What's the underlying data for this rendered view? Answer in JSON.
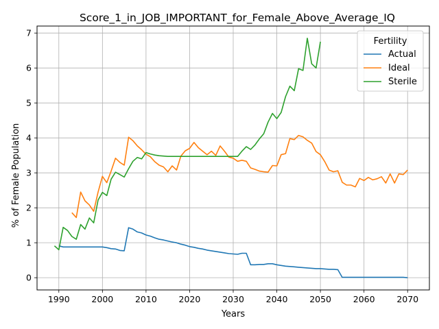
{
  "chart_data": {
    "type": "line",
    "title": "Score_1_in_JOB_IMPORTANT_for_Female_Above_Average_IQ",
    "xlabel": "Years",
    "ylabel": "% of Female Population",
    "xlim": [
      1985,
      2075
    ],
    "ylim": [
      -0.35,
      7.2
    ],
    "xticks": [
      1990,
      2000,
      2010,
      2020,
      2030,
      2040,
      2050,
      2060,
      2070
    ],
    "yticks": [
      0,
      1,
      2,
      3,
      4,
      5,
      6,
      7
    ],
    "grid": true,
    "legend": {
      "title": "Fertility",
      "position": "top-right"
    },
    "series": [
      {
        "name": "Actual",
        "color": "#1f77b4",
        "x": [
          1990,
          1991,
          1992,
          1993,
          1994,
          1995,
          1996,
          1997,
          1998,
          1999,
          2000,
          2001,
          2002,
          2003,
          2004,
          2005,
          2006,
          2007,
          2008,
          2009,
          2010,
          2011,
          2012,
          2013,
          2014,
          2015,
          2016,
          2017,
          2018,
          2019,
          2020,
          2021,
          2022,
          2023,
          2024,
          2025,
          2026,
          2027,
          2028,
          2029,
          2030,
          2031,
          2032,
          2033,
          2034,
          2035,
          2036,
          2037,
          2038,
          2039,
          2040,
          2041,
          2042,
          2043,
          2044,
          2045,
          2046,
          2047,
          2048,
          2049,
          2050,
          2051,
          2052,
          2053,
          2054,
          2055,
          2056,
          2057,
          2058,
          2059,
          2060,
          2061,
          2062,
          2063,
          2064,
          2065,
          2066,
          2067,
          2068,
          2069,
          2070
        ],
        "values": [
          0.91,
          0.88,
          0.88,
          0.88,
          0.88,
          0.88,
          0.88,
          0.88,
          0.88,
          0.88,
          0.88,
          0.86,
          0.83,
          0.82,
          0.78,
          0.77,
          1.43,
          1.39,
          1.31,
          1.28,
          1.22,
          1.19,
          1.14,
          1.1,
          1.08,
          1.05,
          1.02,
          1.0,
          0.96,
          0.93,
          0.89,
          0.87,
          0.84,
          0.82,
          0.79,
          0.77,
          0.75,
          0.73,
          0.71,
          0.69,
          0.68,
          0.67,
          0.7,
          0.7,
          0.37,
          0.37,
          0.38,
          0.38,
          0.4,
          0.4,
          0.37,
          0.35,
          0.33,
          0.32,
          0.31,
          0.3,
          0.29,
          0.28,
          0.27,
          0.26,
          0.26,
          0.25,
          0.24,
          0.24,
          0.23,
          0.01,
          0.01,
          0.01,
          0.01,
          0.01,
          0.01,
          0.01,
          0.01,
          0.01,
          0.01,
          0.01,
          0.01,
          0.01,
          0.01,
          0.01,
          0.0
        ]
      },
      {
        "name": "Ideal",
        "color": "#ff7f0e",
        "x": [
          1993,
          1994,
          1995,
          1996,
          1997,
          1998,
          1999,
          2000,
          2001,
          2002,
          2003,
          2004,
          2005,
          2006,
          2007,
          2008,
          2009,
          2010,
          2011,
          2012,
          2013,
          2014,
          2015,
          2016,
          2017,
          2018,
          2019,
          2020,
          2021,
          2022,
          2023,
          2024,
          2025,
          2026,
          2027,
          2028,
          2029,
          2030,
          2031,
          2032,
          2033,
          2034,
          2035,
          2036,
          2037,
          2038,
          2039,
          2040,
          2041,
          2042,
          2043,
          2044,
          2045,
          2046,
          2047,
          2048,
          2049,
          2050,
          2051,
          2052,
          2053,
          2054,
          2055,
          2056,
          2057,
          2058,
          2059,
          2060,
          2061,
          2062,
          2063,
          2064,
          2065,
          2066,
          2067,
          2068,
          2069,
          2070
        ],
        "values": [
          1.86,
          1.72,
          2.45,
          2.2,
          2.08,
          1.9,
          2.45,
          2.9,
          2.72,
          3.05,
          3.42,
          3.3,
          3.22,
          4.02,
          3.92,
          3.77,
          3.66,
          3.53,
          3.46,
          3.32,
          3.22,
          3.17,
          3.03,
          3.2,
          3.08,
          3.48,
          3.63,
          3.7,
          3.87,
          3.72,
          3.62,
          3.52,
          3.62,
          3.5,
          3.77,
          3.62,
          3.45,
          3.42,
          3.33,
          3.36,
          3.33,
          3.14,
          3.1,
          3.05,
          3.03,
          3.02,
          3.21,
          3.2,
          3.52,
          3.55,
          3.98,
          3.95,
          4.07,
          4.03,
          3.93,
          3.85,
          3.61,
          3.52,
          3.32,
          3.08,
          3.03,
          3.06,
          2.73,
          2.65,
          2.65,
          2.6,
          2.84,
          2.78,
          2.87,
          2.8,
          2.83,
          2.89,
          2.71,
          2.97,
          2.71,
          2.97,
          2.95,
          3.08
        ]
      },
      {
        "name": "Sterile",
        "color": "#2ca02c",
        "x": [
          1989,
          1990,
          1991,
          1992,
          1993,
          1994,
          1995,
          1996,
          1997,
          1998,
          1999,
          2000,
          2001,
          2002,
          2003,
          2004,
          2005,
          2006,
          2007,
          2008,
          2009,
          2010,
          2011,
          2012,
          2013,
          2014,
          2015,
          2016,
          2017,
          2018,
          2019,
          2020,
          2021,
          2022,
          2023,
          2024,
          2025,
          2026,
          2027,
          2028,
          2029,
          2030,
          2031,
          2032,
          2033,
          2034,
          2035,
          2036,
          2037,
          2038,
          2039,
          2040,
          2041,
          2042,
          2043,
          2044,
          2045,
          2046,
          2047,
          2048,
          2049,
          2050
        ],
        "values": [
          0.91,
          0.8,
          1.44,
          1.35,
          1.18,
          1.1,
          1.52,
          1.39,
          1.71,
          1.57,
          2.22,
          2.44,
          2.35,
          2.82,
          3.02,
          2.95,
          2.88,
          3.12,
          3.33,
          3.44,
          3.4,
          3.58,
          3.54,
          3.51,
          3.49,
          3.48,
          3.47,
          3.47,
          3.47,
          3.47,
          3.47,
          3.47,
          3.47,
          3.47,
          3.47,
          3.47,
          3.47,
          3.47,
          3.47,
          3.47,
          3.47,
          3.47,
          3.47,
          3.62,
          3.75,
          3.67,
          3.8,
          3.97,
          4.12,
          4.45,
          4.7,
          4.55,
          4.73,
          5.18,
          5.48,
          5.35,
          5.98,
          5.93,
          6.85,
          6.12,
          6.0,
          6.75
        ]
      }
    ]
  }
}
